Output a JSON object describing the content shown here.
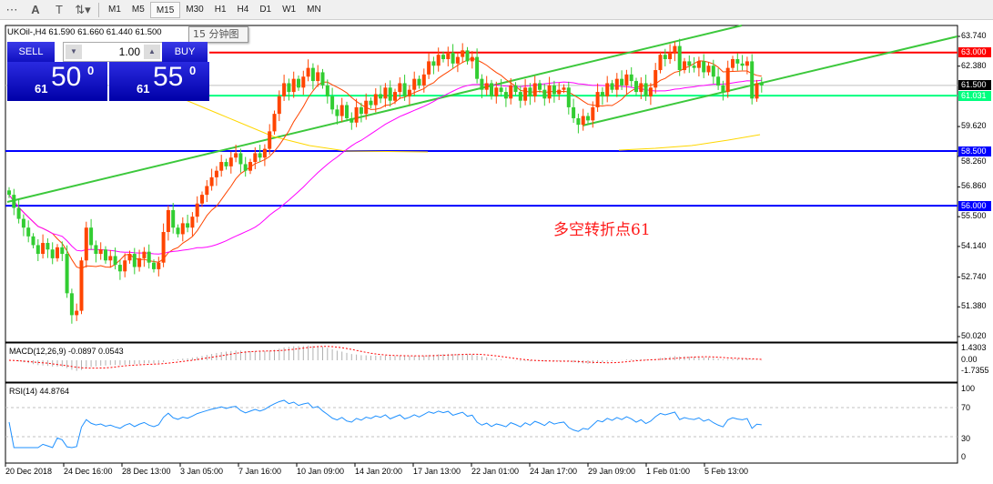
{
  "toolbar": {
    "icons": [
      "period-separator-icon",
      "text-icon",
      "text-label-icon",
      "arrows-icon"
    ],
    "timeframes": [
      "M1",
      "M5",
      "M15",
      "M30",
      "H1",
      "H4",
      "D1",
      "W1",
      "MN"
    ],
    "active": "H4"
  },
  "header": {
    "symbol_line": "UKOil-,H4  61.590 61.660 61.440 61.500",
    "tooltip": "15 分钟图"
  },
  "trade_panel": {
    "sell_label": "SELL",
    "buy_label": "BUY",
    "lot": "1.00",
    "sell_prefix": "61",
    "sell_big": "50",
    "sell_sup": "0",
    "buy_prefix": "61",
    "buy_big": "55",
    "buy_sup": "0"
  },
  "price_axis": [
    "63.740",
    "62.380",
    "59.620",
    "58.260",
    "56.860",
    "55.500",
    "54.140",
    "52.740",
    "51.380",
    "50.020"
  ],
  "levels": [
    {
      "label": "63.000",
      "color": "#ff0000"
    },
    {
      "label": "61.500",
      "color": "#000000"
    },
    {
      "label": "61.031",
      "color": "#00ff7f"
    },
    {
      "label": "58.500",
      "color": "#0000ff"
    },
    {
      "label": "56.000",
      "color": "#0000ff"
    }
  ],
  "annotation": "多空转折点61",
  "macd": {
    "label": "MACD(12,26,9) -0.0897 0.0543",
    "axis": [
      "1.4303",
      "0.00",
      "-1.7355"
    ]
  },
  "rsi": {
    "label": "RSI(14) 44.8764",
    "axis": [
      "100",
      "70",
      "30",
      "0"
    ]
  },
  "time_axis": [
    "20 Dec 2018",
    "24 Dec 16:00",
    "28 Dec 13:00",
    "3 Jan 05:00",
    "7 Jan 16:00",
    "10 Jan 09:00",
    "14 Jan 20:00",
    "17 Jan 13:00",
    "22 Jan 01:00",
    "24 Jan 17:00",
    "29 Jan 09:00",
    "1 Feb 01:00",
    "5 Feb 13:00"
  ],
  "chart_data": {
    "type": "candlestick",
    "ylim": [
      50.02,
      63.74
    ],
    "colors": {
      "up": "#ff4500",
      "down": "#32cd32"
    },
    "closes": [
      56.5,
      55.9,
      55.4,
      55.0,
      54.6,
      54.2,
      53.8,
      54.3,
      54.0,
      53.6,
      54.1,
      53.8,
      52.0,
      51.0,
      51.2,
      53.5,
      55.0,
      54.2,
      53.8,
      54.0,
      53.5,
      53.7,
      53.3,
      53.0,
      53.5,
      53.8,
      53.2,
      53.6,
      53.9,
      53.4,
      53.1,
      53.4,
      54.8,
      55.8,
      55.0,
      54.7,
      55.2,
      55.0,
      55.5,
      56.1,
      56.5,
      56.9,
      57.3,
      57.6,
      58.0,
      57.8,
      58.2,
      58.4,
      57.9,
      57.6,
      58.0,
      58.4,
      58.2,
      58.6,
      59.4,
      60.2,
      61.0,
      61.6,
      61.2,
      61.8,
      61.4,
      61.9,
      62.3,
      61.7,
      62.1,
      61.5,
      61.0,
      60.4,
      60.1,
      60.6,
      60.0,
      59.8,
      60.5,
      60.2,
      60.8,
      60.6,
      61.1,
      60.9,
      61.4,
      60.8,
      61.2,
      61.6,
      61.0,
      61.3,
      61.8,
      61.5,
      62.0,
      62.6,
      62.4,
      62.9,
      62.7,
      63.0,
      62.5,
      62.8,
      63.1,
      62.6,
      62.8,
      61.8,
      61.3,
      61.6,
      61.0,
      61.4,
      61.2,
      60.9,
      61.5,
      61.2,
      60.8,
      61.4,
      61.0,
      61.6,
      61.3,
      60.9,
      61.5,
      61.1,
      61.3,
      61.4,
      60.5,
      60.0,
      59.7,
      60.1,
      59.9,
      60.5,
      61.2,
      61.0,
      61.6,
      61.3,
      61.8,
      61.5,
      62.0,
      61.7,
      61.2,
      61.6,
      61.0,
      61.4,
      62.2,
      62.9,
      62.7,
      63.0,
      63.3,
      62.2,
      62.6,
      62.4,
      62.3,
      62.6,
      62.1,
      62.4,
      61.9,
      61.5,
      61.2,
      62.3,
      62.7,
      62.5,
      62.4,
      62.6,
      60.9,
      61.6,
      61.5
    ]
  }
}
